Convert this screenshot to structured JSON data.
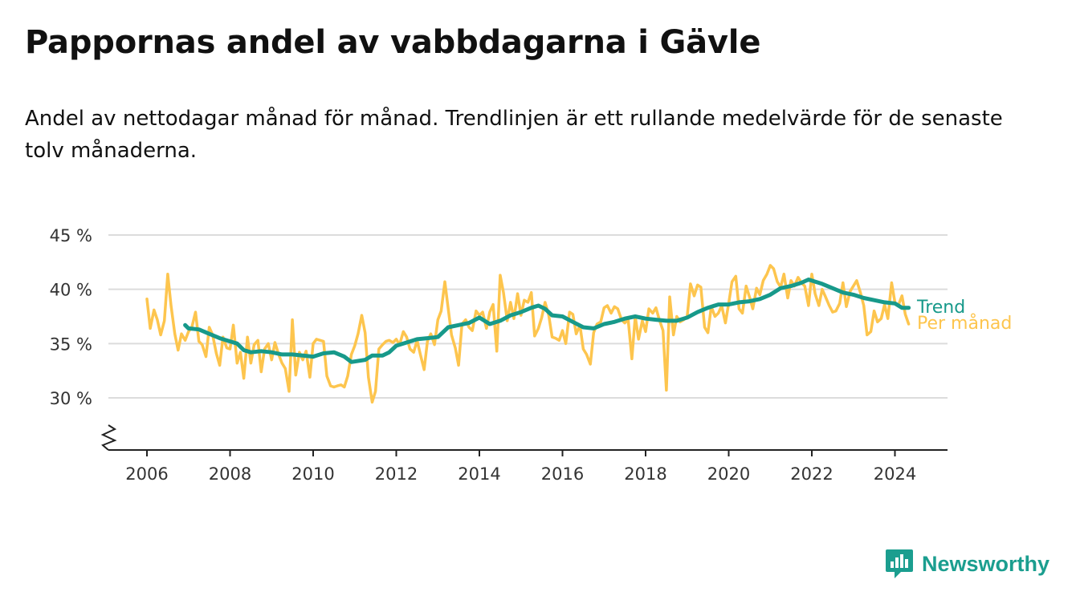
{
  "header": {
    "title": "Pappornas andel av vabbdagarna i Gävle",
    "subtitle": "Andel av nettodagar månad för månad. Trendlinjen är ett rullande medelvärde för de senaste tolv månaderna."
  },
  "brand": {
    "name": "Newsworthy",
    "icon": "newsworthy-logo-icon",
    "color": "#1b9e8f"
  },
  "chart_data": {
    "type": "line",
    "xlim": [
      2006,
      2024.9
    ],
    "ylim": [
      25,
      45
    ],
    "y_ticks": [
      30,
      35,
      40,
      45
    ],
    "y_tick_labels": [
      "30 %",
      "35 %",
      "40 %",
      "45 %"
    ],
    "x_ticks": [
      2006,
      2008,
      2010,
      2012,
      2014,
      2016,
      2018,
      2020,
      2022,
      2024
    ],
    "x_tick_labels": [
      "2006",
      "2008",
      "2010",
      "2012",
      "2014",
      "2016",
      "2018",
      "2020",
      "2022",
      "2024"
    ],
    "grid": true,
    "y_axis_break": true,
    "legend": "right-end labels",
    "series": [
      {
        "name": "Per månad",
        "color": "#fdc54e",
        "points": [
          [
            2006.0,
            39.1
          ],
          [
            2006.08,
            36.4
          ],
          [
            2006.17,
            38.1
          ],
          [
            2006.25,
            37.2
          ],
          [
            2006.33,
            35.8
          ],
          [
            2006.42,
            37.1
          ],
          [
            2006.5,
            41.4
          ],
          [
            2006.58,
            38.5
          ],
          [
            2006.67,
            35.9
          ],
          [
            2006.75,
            34.4
          ],
          [
            2006.83,
            35.9
          ],
          [
            2006.92,
            35.3
          ],
          [
            2007.0,
            36.1
          ],
          [
            2007.08,
            36.5
          ],
          [
            2007.17,
            37.9
          ],
          [
            2007.25,
            35.2
          ],
          [
            2007.33,
            34.9
          ],
          [
            2007.42,
            33.8
          ],
          [
            2007.5,
            36.5
          ],
          [
            2007.58,
            35.8
          ],
          [
            2007.67,
            34.1
          ],
          [
            2007.75,
            33.0
          ],
          [
            2007.83,
            35.6
          ],
          [
            2007.92,
            34.6
          ],
          [
            2008.0,
            34.5
          ],
          [
            2008.08,
            36.7
          ],
          [
            2008.17,
            33.2
          ],
          [
            2008.25,
            34.2
          ],
          [
            2008.33,
            31.8
          ],
          [
            2008.42,
            35.6
          ],
          [
            2008.5,
            33.2
          ],
          [
            2008.58,
            34.9
          ],
          [
            2008.67,
            35.3
          ],
          [
            2008.75,
            32.4
          ],
          [
            2008.83,
            34.5
          ],
          [
            2008.92,
            35.0
          ],
          [
            2009.0,
            33.5
          ],
          [
            2009.08,
            35.1
          ],
          [
            2009.17,
            34.0
          ],
          [
            2009.25,
            33.2
          ],
          [
            2009.33,
            32.7
          ],
          [
            2009.42,
            30.6
          ],
          [
            2009.5,
            37.2
          ],
          [
            2009.58,
            32.1
          ],
          [
            2009.67,
            34.2
          ],
          [
            2009.75,
            33.5
          ],
          [
            2009.83,
            34.3
          ],
          [
            2009.92,
            31.9
          ],
          [
            2010.0,
            35.0
          ],
          [
            2010.08,
            35.4
          ],
          [
            2010.17,
            35.3
          ],
          [
            2010.25,
            35.2
          ],
          [
            2010.33,
            32.0
          ],
          [
            2010.42,
            31.1
          ],
          [
            2010.5,
            31.0
          ],
          [
            2010.58,
            31.1
          ],
          [
            2010.67,
            31.2
          ],
          [
            2010.75,
            31.0
          ],
          [
            2010.83,
            32.0
          ],
          [
            2010.92,
            34.0
          ],
          [
            2011.0,
            34.8
          ],
          [
            2011.08,
            35.9
          ],
          [
            2011.17,
            37.6
          ],
          [
            2011.25,
            36.0
          ],
          [
            2011.33,
            31.9
          ],
          [
            2011.42,
            29.6
          ],
          [
            2011.5,
            30.6
          ],
          [
            2011.58,
            34.5
          ],
          [
            2011.67,
            34.9
          ],
          [
            2011.75,
            35.2
          ],
          [
            2011.83,
            35.3
          ],
          [
            2011.92,
            35.1
          ],
          [
            2012.0,
            35.4
          ],
          [
            2012.08,
            34.9
          ],
          [
            2012.17,
            36.1
          ],
          [
            2012.25,
            35.6
          ],
          [
            2012.33,
            34.5
          ],
          [
            2012.42,
            34.2
          ],
          [
            2012.5,
            35.3
          ],
          [
            2012.58,
            34.0
          ],
          [
            2012.67,
            32.6
          ],
          [
            2012.75,
            35.2
          ],
          [
            2012.83,
            35.9
          ],
          [
            2012.92,
            34.9
          ],
          [
            2013.0,
            37.2
          ],
          [
            2013.08,
            38.0
          ],
          [
            2013.17,
            40.7
          ],
          [
            2013.25,
            38.2
          ],
          [
            2013.33,
            35.8
          ],
          [
            2013.42,
            34.6
          ],
          [
            2013.5,
            33.0
          ],
          [
            2013.58,
            36.8
          ],
          [
            2013.67,
            37.2
          ],
          [
            2013.75,
            36.5
          ],
          [
            2013.83,
            36.2
          ],
          [
            2013.92,
            38.0
          ],
          [
            2014.0,
            37.6
          ],
          [
            2014.08,
            37.9
          ],
          [
            2014.17,
            36.4
          ],
          [
            2014.25,
            37.9
          ],
          [
            2014.33,
            38.6
          ],
          [
            2014.42,
            34.3
          ],
          [
            2014.5,
            41.3
          ],
          [
            2014.58,
            39.7
          ],
          [
            2014.67,
            37.1
          ],
          [
            2014.75,
            38.8
          ],
          [
            2014.83,
            37.3
          ],
          [
            2014.92,
            39.6
          ],
          [
            2015.0,
            37.6
          ],
          [
            2015.08,
            39.0
          ],
          [
            2015.17,
            38.8
          ],
          [
            2015.25,
            39.7
          ],
          [
            2015.33,
            35.7
          ],
          [
            2015.42,
            36.4
          ],
          [
            2015.5,
            37.4
          ],
          [
            2015.58,
            38.8
          ],
          [
            2015.67,
            37.6
          ],
          [
            2015.75,
            35.6
          ],
          [
            2015.83,
            35.5
          ],
          [
            2015.92,
            35.3
          ],
          [
            2016.0,
            36.2
          ],
          [
            2016.08,
            35.0
          ],
          [
            2016.17,
            37.9
          ],
          [
            2016.25,
            37.7
          ],
          [
            2016.33,
            35.9
          ],
          [
            2016.42,
            36.7
          ],
          [
            2016.5,
            34.5
          ],
          [
            2016.58,
            34.0
          ],
          [
            2016.67,
            33.1
          ],
          [
            2016.75,
            36.0
          ],
          [
            2016.83,
            36.8
          ],
          [
            2016.92,
            37.0
          ],
          [
            2017.0,
            38.3
          ],
          [
            2017.08,
            38.5
          ],
          [
            2017.17,
            37.8
          ],
          [
            2017.25,
            38.4
          ],
          [
            2017.33,
            38.2
          ],
          [
            2017.42,
            37.2
          ],
          [
            2017.5,
            36.9
          ],
          [
            2017.58,
            37.2
          ],
          [
            2017.67,
            33.6
          ],
          [
            2017.75,
            37.5
          ],
          [
            2017.83,
            35.4
          ],
          [
            2017.92,
            37.1
          ],
          [
            2018.0,
            36.1
          ],
          [
            2018.08,
            38.2
          ],
          [
            2018.17,
            37.8
          ],
          [
            2018.25,
            38.3
          ],
          [
            2018.33,
            37.2
          ],
          [
            2018.42,
            36.2
          ],
          [
            2018.5,
            30.7
          ],
          [
            2018.58,
            39.3
          ],
          [
            2018.67,
            35.8
          ],
          [
            2018.75,
            37.5
          ],
          [
            2018.83,
            37.0
          ],
          [
            2018.92,
            37.2
          ],
          [
            2019.0,
            37.5
          ],
          [
            2019.08,
            40.5
          ],
          [
            2019.17,
            39.4
          ],
          [
            2019.25,
            40.4
          ],
          [
            2019.33,
            40.2
          ],
          [
            2019.42,
            36.5
          ],
          [
            2019.5,
            36.0
          ],
          [
            2019.58,
            38.4
          ],
          [
            2019.67,
            37.5
          ],
          [
            2019.75,
            37.8
          ],
          [
            2019.83,
            38.5
          ],
          [
            2019.92,
            36.9
          ],
          [
            2020.0,
            38.7
          ],
          [
            2020.08,
            40.7
          ],
          [
            2020.17,
            41.2
          ],
          [
            2020.25,
            38.2
          ],
          [
            2020.33,
            37.8
          ],
          [
            2020.42,
            40.3
          ],
          [
            2020.5,
            39.3
          ],
          [
            2020.58,
            38.2
          ],
          [
            2020.67,
            40.1
          ],
          [
            2020.75,
            39.5
          ],
          [
            2020.83,
            40.8
          ],
          [
            2020.92,
            41.4
          ],
          [
            2021.0,
            42.2
          ],
          [
            2021.08,
            41.9
          ],
          [
            2021.17,
            40.7
          ],
          [
            2021.25,
            40.2
          ],
          [
            2021.33,
            41.4
          ],
          [
            2021.42,
            39.2
          ],
          [
            2021.5,
            40.8
          ],
          [
            2021.58,
            40.3
          ],
          [
            2021.67,
            41.1
          ],
          [
            2021.75,
            40.6
          ],
          [
            2021.83,
            40.3
          ],
          [
            2021.92,
            38.5
          ],
          [
            2022.0,
            41.4
          ],
          [
            2022.08,
            39.6
          ],
          [
            2022.17,
            38.5
          ],
          [
            2022.25,
            40.0
          ],
          [
            2022.33,
            39.3
          ],
          [
            2022.42,
            38.5
          ],
          [
            2022.5,
            37.9
          ],
          [
            2022.58,
            38.0
          ],
          [
            2022.67,
            38.7
          ],
          [
            2022.75,
            40.6
          ],
          [
            2022.83,
            38.4
          ],
          [
            2022.92,
            39.8
          ],
          [
            2023.0,
            40.3
          ],
          [
            2023.08,
            40.8
          ],
          [
            2023.17,
            39.7
          ],
          [
            2023.25,
            38.5
          ],
          [
            2023.33,
            35.8
          ],
          [
            2023.42,
            36.1
          ],
          [
            2023.5,
            38.0
          ],
          [
            2023.58,
            37.0
          ],
          [
            2023.67,
            37.3
          ],
          [
            2023.75,
            38.6
          ],
          [
            2023.83,
            37.3
          ],
          [
            2023.92,
            40.6
          ],
          [
            2024.0,
            38.8
          ],
          [
            2024.08,
            38.5
          ],
          [
            2024.17,
            39.4
          ],
          [
            2024.25,
            37.7
          ],
          [
            2024.33,
            36.8
          ]
        ]
      },
      {
        "name": "Trend",
        "color": "#17998a",
        "points": [
          [
            2006.92,
            36.7
          ],
          [
            2007.0,
            36.4
          ],
          [
            2007.25,
            36.3
          ],
          [
            2007.5,
            35.9
          ],
          [
            2007.75,
            35.5
          ],
          [
            2008.0,
            35.2
          ],
          [
            2008.17,
            35.0
          ],
          [
            2008.33,
            34.4
          ],
          [
            2008.5,
            34.2
          ],
          [
            2008.75,
            34.3
          ],
          [
            2009.0,
            34.2
          ],
          [
            2009.25,
            34.0
          ],
          [
            2009.5,
            34.0
          ],
          [
            2009.75,
            33.9
          ],
          [
            2010.0,
            33.8
          ],
          [
            2010.25,
            34.1
          ],
          [
            2010.5,
            34.2
          ],
          [
            2010.75,
            33.8
          ],
          [
            2010.92,
            33.3
          ],
          [
            2011.25,
            33.5
          ],
          [
            2011.42,
            33.9
          ],
          [
            2011.67,
            33.9
          ],
          [
            2011.83,
            34.2
          ],
          [
            2012.0,
            34.8
          ],
          [
            2012.25,
            35.1
          ],
          [
            2012.5,
            35.4
          ],
          [
            2012.75,
            35.5
          ],
          [
            2013.0,
            35.6
          ],
          [
            2013.25,
            36.5
          ],
          [
            2013.5,
            36.7
          ],
          [
            2013.75,
            36.9
          ],
          [
            2014.0,
            37.4
          ],
          [
            2014.25,
            36.8
          ],
          [
            2014.5,
            37.1
          ],
          [
            2014.75,
            37.6
          ],
          [
            2015.0,
            37.9
          ],
          [
            2015.25,
            38.3
          ],
          [
            2015.42,
            38.5
          ],
          [
            2015.58,
            38.2
          ],
          [
            2015.75,
            37.6
          ],
          [
            2016.0,
            37.5
          ],
          [
            2016.25,
            37.0
          ],
          [
            2016.5,
            36.5
          ],
          [
            2016.75,
            36.4
          ],
          [
            2017.0,
            36.8
          ],
          [
            2017.25,
            37.0
          ],
          [
            2017.5,
            37.3
          ],
          [
            2017.75,
            37.5
          ],
          [
            2018.0,
            37.3
          ],
          [
            2018.25,
            37.2
          ],
          [
            2018.5,
            37.1
          ],
          [
            2018.75,
            37.1
          ],
          [
            2019.0,
            37.4
          ],
          [
            2019.25,
            37.9
          ],
          [
            2019.5,
            38.3
          ],
          [
            2019.75,
            38.6
          ],
          [
            2020.0,
            38.6
          ],
          [
            2020.25,
            38.8
          ],
          [
            2020.5,
            38.9
          ],
          [
            2020.75,
            39.1
          ],
          [
            2021.0,
            39.5
          ],
          [
            2021.25,
            40.1
          ],
          [
            2021.5,
            40.3
          ],
          [
            2021.75,
            40.6
          ],
          [
            2021.92,
            40.9
          ],
          [
            2022.25,
            40.5
          ],
          [
            2022.5,
            40.1
          ],
          [
            2022.75,
            39.7
          ],
          [
            2023.0,
            39.5
          ],
          [
            2023.25,
            39.2
          ],
          [
            2023.5,
            39.0
          ],
          [
            2023.75,
            38.8
          ],
          [
            2024.0,
            38.7
          ],
          [
            2024.17,
            38.3
          ],
          [
            2024.33,
            38.3
          ]
        ]
      }
    ]
  }
}
